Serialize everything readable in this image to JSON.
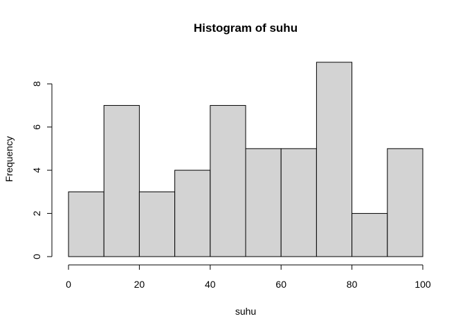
{
  "chart_data": {
    "type": "bar",
    "title": "Histogram of suhu",
    "xlabel": "suhu",
    "ylabel": "Frequency",
    "bins": [
      {
        "start": 0,
        "end": 10,
        "count": 3
      },
      {
        "start": 10,
        "end": 20,
        "count": 7
      },
      {
        "start": 20,
        "end": 30,
        "count": 3
      },
      {
        "start": 30,
        "end": 40,
        "count": 4
      },
      {
        "start": 40,
        "end": 50,
        "count": 7
      },
      {
        "start": 50,
        "end": 60,
        "count": 5
      },
      {
        "start": 60,
        "end": 70,
        "count": 5
      },
      {
        "start": 70,
        "end": 80,
        "count": 9
      },
      {
        "start": 80,
        "end": 90,
        "count": 2
      },
      {
        "start": 90,
        "end": 100,
        "count": 5
      }
    ],
    "xlim": [
      0,
      100
    ],
    "ylim": [
      0,
      9
    ],
    "x_ticks": [
      "0",
      "20",
      "40",
      "60",
      "80",
      "100"
    ],
    "y_ticks": [
      "0",
      "2",
      "4",
      "6",
      "8"
    ],
    "grid": false,
    "bar_color": "#d3d3d3",
    "edge_color": "#000000"
  }
}
